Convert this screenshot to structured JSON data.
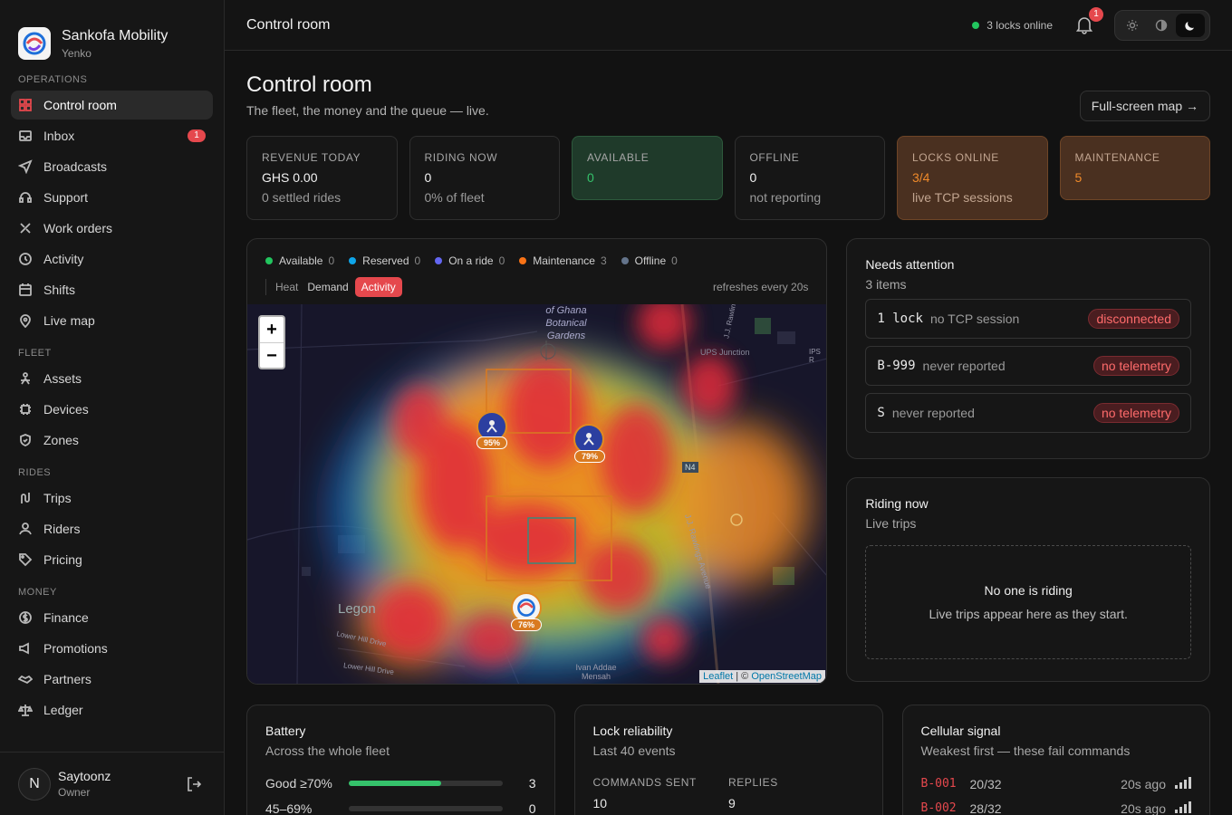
{
  "brand": {
    "title": "Sankofa Mobility",
    "subtitle": "Yenko"
  },
  "nav": {
    "sections": [
      {
        "label": "OPERATIONS",
        "items": [
          {
            "label": "Control room",
            "icon": "grid-icon",
            "active": true
          },
          {
            "label": "Inbox",
            "icon": "inbox-icon",
            "badge": "1"
          },
          {
            "label": "Broadcasts",
            "icon": "send-icon"
          },
          {
            "label": "Support",
            "icon": "headset-icon"
          },
          {
            "label": "Work orders",
            "icon": "tools-icon"
          },
          {
            "label": "Activity",
            "icon": "history-icon"
          },
          {
            "label": "Shifts",
            "icon": "calendar-icon"
          },
          {
            "label": "Live map",
            "icon": "pin-icon"
          }
        ]
      },
      {
        "label": "FLEET",
        "items": [
          {
            "label": "Assets",
            "icon": "bike-icon"
          },
          {
            "label": "Devices",
            "icon": "chip-icon"
          },
          {
            "label": "Zones",
            "icon": "shield-icon"
          }
        ]
      },
      {
        "label": "RIDES",
        "items": [
          {
            "label": "Trips",
            "icon": "route-icon"
          },
          {
            "label": "Riders",
            "icon": "user-icon"
          },
          {
            "label": "Pricing",
            "icon": "tag-icon"
          }
        ]
      },
      {
        "label": "MONEY",
        "items": [
          {
            "label": "Finance",
            "icon": "dollar-icon"
          },
          {
            "label": "Promotions",
            "icon": "megaphone-icon"
          },
          {
            "label": "Partners",
            "icon": "handshake-icon"
          },
          {
            "label": "Ledger",
            "icon": "scale-icon"
          }
        ]
      }
    ]
  },
  "user": {
    "initial": "N",
    "name": "Saytoonz",
    "role": "Owner"
  },
  "topbar": {
    "title": "Control room",
    "online_text": "3 locks online",
    "bell_count": "1"
  },
  "page": {
    "title": "Control room",
    "subtitle": "The fleet, the money and the queue — live.",
    "fullscreen_label": "Full-screen map →"
  },
  "kpis": [
    {
      "label": "REVENUE TODAY",
      "value": "GHS 0.00",
      "sub": "0 settled rides",
      "style": "plain"
    },
    {
      "label": "RIDING NOW",
      "value": "0",
      "sub": "0% of fleet",
      "style": "plain"
    },
    {
      "label": "AVAILABLE",
      "value": "0",
      "sub": "",
      "style": "green"
    },
    {
      "label": "OFFLINE",
      "value": "0",
      "sub": "not reporting",
      "style": "plain"
    },
    {
      "label": "LOCKS ONLINE",
      "value": "3/4",
      "sub": "live TCP sessions",
      "style": "orange"
    },
    {
      "label": "MAINTENANCE",
      "value": "5",
      "sub": "",
      "style": "orange"
    }
  ],
  "map": {
    "legend": [
      {
        "label": "Available",
        "count": "0",
        "color": "#22c55e"
      },
      {
        "label": "Reserved",
        "count": "0",
        "color": "#0ea5e9"
      },
      {
        "label": "On a ride",
        "count": "0",
        "color": "#6366f1"
      },
      {
        "label": "Maintenance",
        "count": "3",
        "color": "#f97316"
      },
      {
        "label": "Offline",
        "count": "0",
        "color": "#64748b"
      }
    ],
    "modes": [
      "Heat",
      "Demand",
      "Activity"
    ],
    "active_mode": "Activity",
    "refresh": "refreshes every 20s",
    "labels": {
      "garden": "of Ghana Botanical Gardens",
      "legon": "Legon",
      "ups": "UPS Junction",
      "n4": "N4",
      "ivan": "Ivan Addae Mensah",
      "lowerhill1": "Lower Hill Drive",
      "lowerhill2": "Lower Hill Drive",
      "ravilla": "J.J. Rawlings",
      "rawlings": "J.J. Rawlings Avenue",
      "ips": "IPS R"
    },
    "markers": [
      {
        "pct": "95%"
      },
      {
        "pct": "79%"
      },
      {
        "pct": "76%"
      }
    ],
    "attribution": {
      "leaflet": "Leaflet",
      "sep": " | © ",
      "osm": "OpenStreetMap"
    }
  },
  "attention": {
    "title": "Needs attention",
    "sub": "3 items",
    "items": [
      {
        "id": "1 lock",
        "desc": "no TCP session",
        "tag": "disconnected"
      },
      {
        "id": "B-999",
        "desc": "never reported",
        "tag": "no telemetry"
      },
      {
        "id": "S",
        "desc": "never reported",
        "tag": "no telemetry"
      }
    ]
  },
  "riding": {
    "title": "Riding now",
    "sub": "Live trips",
    "empty_title": "No one is riding",
    "empty_sub": "Live trips appear here as they start."
  },
  "battery": {
    "title": "Battery",
    "sub": "Across the whole fleet",
    "rows": [
      {
        "label": "Good ≥70%",
        "count": "3",
        "fill": 0.6
      },
      {
        "label": "45–69%",
        "count": "0",
        "fill": 0
      }
    ]
  },
  "lock": {
    "title": "Lock reliability",
    "sub": "Last 40 events",
    "commands_label": "COMMANDS SENT",
    "commands": "10",
    "replies_label": "REPLIES",
    "replies": "9"
  },
  "cellular": {
    "title": "Cellular signal",
    "sub": "Weakest first — these fail commands",
    "rows": [
      {
        "id": "B-001",
        "val": "20/32",
        "ago": "20s ago"
      },
      {
        "id": "B-002",
        "val": "28/32",
        "ago": "20s ago"
      }
    ]
  }
}
